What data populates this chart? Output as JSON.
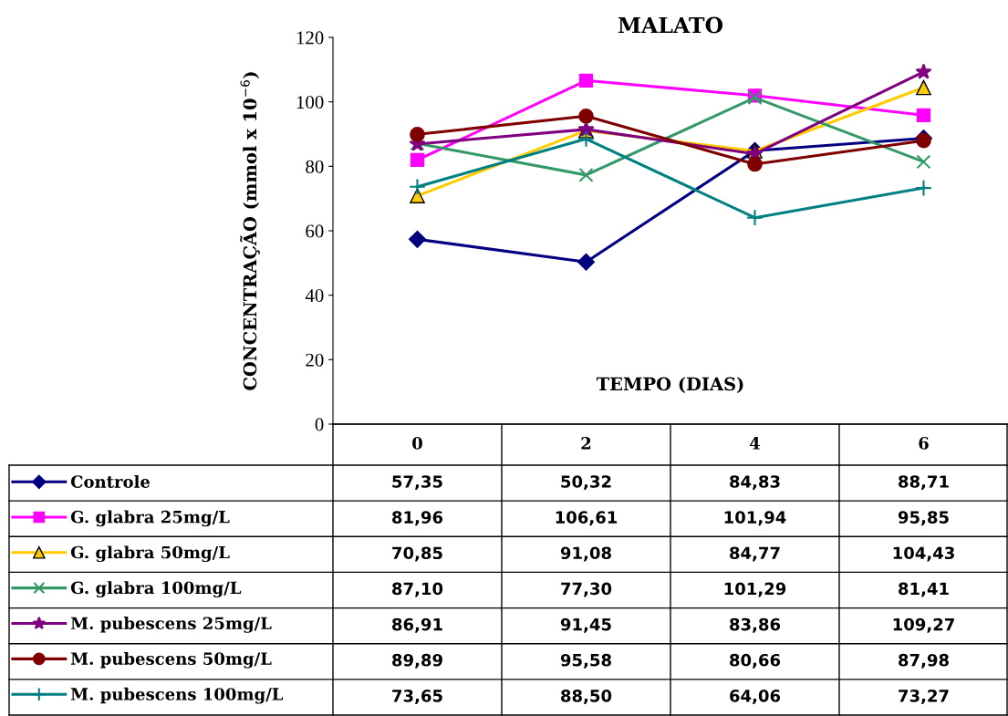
{
  "chart_data": {
    "type": "line",
    "title": "MALATO",
    "xlabel": "TEMPO (DIAS)",
    "ylabel": "CONCENTRAÇÃO (mmol x 10$^{−6}$)",
    "categories": [
      "0",
      "2",
      "4",
      "6"
    ],
    "ylim": [
      0,
      120
    ],
    "yticks": [
      0,
      20,
      40,
      60,
      80,
      100,
      120
    ],
    "grid": false,
    "legend": "bottom",
    "series": [
      {
        "name": "Controle",
        "color": "#000080",
        "marker": "diamond",
        "values": [
          57.35,
          50.32,
          84.83,
          88.71
        ],
        "value_labels": [
          "57,35",
          "50,32",
          "84,83",
          "88,71"
        ]
      },
      {
        "name": "G. glabra 25mg/L",
        "color": "#ff00ff",
        "marker": "square",
        "values": [
          81.96,
          106.61,
          101.94,
          95.85
        ],
        "value_labels": [
          "81,96",
          "106,61",
          "101,94",
          "95,85"
        ]
      },
      {
        "name": "G. glabra 50mg/L",
        "color": "#ffcc00",
        "marker": "triangle",
        "values": [
          70.85,
          91.08,
          84.77,
          104.43
        ],
        "value_labels": [
          "70,85",
          "91,08",
          "84,77",
          "104,43"
        ]
      },
      {
        "name": "G. glabra 100mg/L",
        "color": "#339966",
        "marker": "cross",
        "values": [
          87.1,
          77.3,
          101.29,
          81.41
        ],
        "value_labels": [
          "87,10",
          "77,30",
          "101,29",
          "81,41"
        ]
      },
      {
        "name": "M. pubescens 25mg/L",
        "color": "#800080",
        "marker": "star",
        "values": [
          86.91,
          91.45,
          83.86,
          109.27
        ],
        "value_labels": [
          "86,91",
          "91,45",
          "83,86",
          "109,27"
        ]
      },
      {
        "name": "M. pubescens 50mg/L",
        "color": "#800000",
        "marker": "circle",
        "values": [
          89.89,
          95.58,
          80.66,
          87.98
        ],
        "value_labels": [
          "89,89",
          "95,58",
          "80,66",
          "87,98"
        ]
      },
      {
        "name": "M. pubescens 100mg/L",
        "color": "#008080",
        "marker": "plus",
        "values": [
          73.65,
          88.5,
          64.06,
          73.27
        ],
        "value_labels": [
          "73,65",
          "88,50",
          "64,06",
          "73,27"
        ]
      }
    ]
  }
}
